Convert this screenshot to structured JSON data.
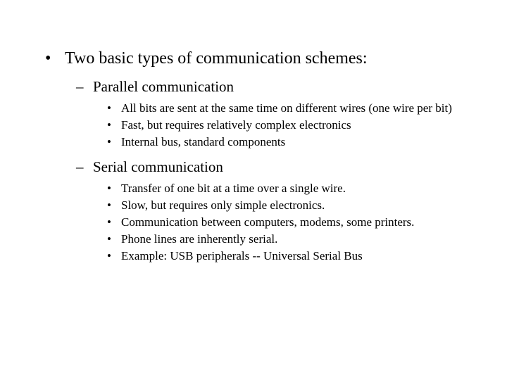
{
  "colors": {
    "background": "#ffffff",
    "text": "#000000"
  },
  "typography": {
    "family": "Times New Roman",
    "level1_size": 24,
    "level2_size": 21,
    "level3_size": 17
  },
  "content": {
    "main": {
      "bullet": "•",
      "text": "Two basic types of communication schemes:"
    },
    "sub1": {
      "dash": "–",
      "text": "Parallel communication",
      "items": [
        "All bits are sent at the same time on different wires (one wire per bit)",
        "Fast, but requires relatively complex electronics",
        "Internal bus, standard components"
      ]
    },
    "sub2": {
      "dash": "–",
      "text": "Serial communication",
      "items": [
        "Transfer of one bit at a time over a single wire.",
        "Slow, but requires only simple electronics.",
        "Communication between computers, modems, some printers.",
        "Phone lines are inherently serial.",
        "Example: USB peripherals -- Universal Serial Bus"
      ]
    },
    "item_bullet": "•"
  }
}
